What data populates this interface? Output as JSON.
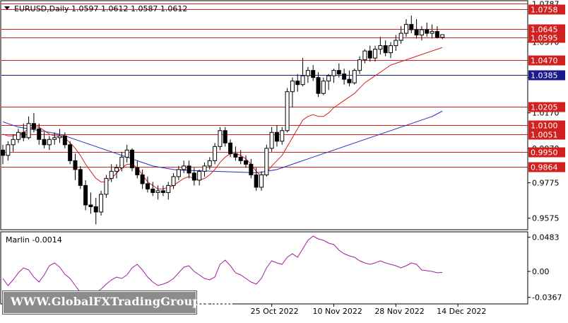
{
  "chart_data": [
    {
      "type": "candlestick",
      "title": "EURUSD,Daily  1.0597 1.0612 1.0587 1.0612",
      "header": {
        "symbol": "EURUSD,Daily",
        "open": "1.0597",
        "high": "1.0612",
        "low": "1.0587",
        "close": "1.0612"
      },
      "ylim": [
        0.951,
        1.08
      ],
      "y_ticks": [
        "0.9575",
        "0.9775",
        "0.9970",
        "1.0170",
        "1.0370",
        "1.0570"
      ],
      "x_labels": [
        {
          "label": "25 Oct 2022",
          "index": 52
        },
        {
          "label": "10 Nov 2022",
          "index": 64
        },
        {
          "label": "28 Nov 2022",
          "index": 76
        },
        {
          "label": "14 Dec 2022",
          "index": 88
        }
      ],
      "levels": [
        {
          "value": 1.0787,
          "label": "1.0787",
          "color": "#d02020",
          "tag": false
        },
        {
          "value": 1.0758,
          "label": "1.0758",
          "color": "#d02020",
          "tag": true
        },
        {
          "value": 1.0645,
          "label": "1.0645",
          "color": "#d02020",
          "tag": true
        },
        {
          "value": 1.0595,
          "label": "1.0595",
          "color": "#d02020",
          "tag": true
        },
        {
          "value": 1.047,
          "label": "1.0470",
          "color": "#d02020",
          "tag": true
        },
        {
          "value": 1.0385,
          "label": "1.0385",
          "color": "#1a1a8c",
          "tag": true
        },
        {
          "value": 1.0205,
          "label": "1.0205",
          "color": "#d02020",
          "tag": true
        },
        {
          "value": 1.01,
          "label": "1.0100",
          "color": "#d02020",
          "tag": true
        },
        {
          "value": 1.0051,
          "label": "1.0051",
          "color": "#d02020",
          "tag": true
        },
        {
          "value": 0.995,
          "label": "0.9950",
          "color": "#d02020",
          "tag": true
        },
        {
          "value": 0.9864,
          "label": "0.9864",
          "color": "#d02020",
          "tag": true
        }
      ],
      "candles": [
        [
          0.996,
          0.999,
          0.988,
          0.993
        ],
        [
          0.993,
          1.001,
          0.99,
          0.999
        ],
        [
          0.999,
          1.005,
          0.995,
          1.002
        ],
        [
          1.002,
          1.008,
          1.0,
          1.006
        ],
        [
          1.006,
          1.011,
          1.001,
          1.003
        ],
        [
          1.003,
          1.015,
          1.002,
          1.011
        ],
        [
          1.011,
          1.017,
          1.006,
          1.008
        ],
        [
          1.008,
          1.011,
          0.999,
          1.002
        ],
        [
          1.002,
          1.006,
          0.997,
          0.999
        ],
        [
          0.999,
          1.004,
          0.996,
          1.002
        ],
        [
          1.002,
          1.006,
          0.999,
          1.003
        ],
        [
          1.003,
          1.008,
          1.0,
          1.004
        ],
        [
          1.004,
          1.006,
          0.997,
          0.999
        ],
        [
          0.999,
          1.001,
          0.988,
          0.99
        ],
        [
          0.99,
          0.994,
          0.979,
          0.985
        ],
        [
          0.985,
          0.987,
          0.974,
          0.976
        ],
        [
          0.976,
          0.979,
          0.962,
          0.965
        ],
        [
          0.965,
          0.972,
          0.96,
          0.964
        ],
        [
          0.964,
          0.969,
          0.954,
          0.961
        ],
        [
          0.961,
          0.973,
          0.959,
          0.971
        ],
        [
          0.971,
          0.982,
          0.969,
          0.98
        ],
        [
          0.98,
          0.988,
          0.978,
          0.984
        ],
        [
          0.984,
          0.988,
          0.98,
          0.986
        ],
        [
          0.986,
          0.995,
          0.984,
          0.992
        ],
        [
          0.992,
          0.999,
          0.989,
          0.996
        ],
        [
          0.996,
          0.997,
          0.984,
          0.986
        ],
        [
          0.986,
          0.99,
          0.98,
          0.982
        ],
        [
          0.982,
          0.985,
          0.974,
          0.977
        ],
        [
          0.977,
          0.981,
          0.972,
          0.974
        ],
        [
          0.974,
          0.978,
          0.97,
          0.972
        ],
        [
          0.972,
          0.976,
          0.968,
          0.973
        ],
        [
          0.973,
          0.976,
          0.97,
          0.972
        ],
        [
          0.972,
          0.978,
          0.968,
          0.976
        ],
        [
          0.976,
          0.983,
          0.974,
          0.981
        ],
        [
          0.981,
          0.987,
          0.979,
          0.985
        ],
        [
          0.985,
          0.99,
          0.983,
          0.987
        ],
        [
          0.987,
          0.99,
          0.98,
          0.983
        ],
        [
          0.983,
          0.986,
          0.976,
          0.979
        ],
        [
          0.979,
          0.985,
          0.976,
          0.984
        ],
        [
          0.984,
          0.989,
          0.981,
          0.987
        ],
        [
          0.987,
          0.992,
          0.985,
          0.99
        ],
        [
          0.99,
          1.0,
          0.988,
          0.998
        ],
        [
          0.998,
          1.009,
          0.996,
          1.007
        ],
        [
          1.007,
          1.009,
          0.998,
          1.0
        ],
        [
          1.0,
          1.002,
          0.992,
          0.994
        ],
        [
          0.994,
          0.998,
          0.99,
          0.992
        ],
        [
          0.992,
          0.996,
          0.988,
          0.99
        ],
        [
          0.99,
          0.993,
          0.986,
          0.988
        ],
        [
          0.988,
          0.991,
          0.98,
          0.982
        ],
        [
          0.982,
          0.986,
          0.973,
          0.975
        ],
        [
          0.975,
          0.984,
          0.973,
          0.982
        ],
        [
          0.982,
          0.999,
          0.981,
          0.997
        ],
        [
          0.997,
          1.009,
          0.995,
          1.006
        ],
        [
          1.006,
          1.01,
          0.998,
          1.001
        ],
        [
          1.001,
          1.009,
          0.999,
          1.007
        ],
        [
          1.007,
          1.031,
          1.006,
          1.029
        ],
        [
          1.029,
          1.037,
          1.02,
          1.035
        ],
        [
          1.035,
          1.039,
          1.029,
          1.033
        ],
        [
          1.033,
          1.048,
          1.032,
          1.038
        ],
        [
          1.038,
          1.043,
          1.034,
          1.041
        ],
        [
          1.041,
          1.044,
          1.035,
          1.037
        ],
        [
          1.037,
          1.04,
          1.026,
          1.028
        ],
        [
          1.028,
          1.037,
          1.027,
          1.035
        ],
        [
          1.035,
          1.039,
          1.03,
          1.038
        ],
        [
          1.038,
          1.042,
          1.034,
          1.041
        ],
        [
          1.041,
          1.045,
          1.037,
          1.039
        ],
        [
          1.039,
          1.042,
          1.033,
          1.036
        ],
        [
          1.036,
          1.041,
          1.032,
          1.034
        ],
        [
          1.034,
          1.042,
          1.033,
          1.041
        ],
        [
          1.041,
          1.049,
          1.039,
          1.047
        ],
        [
          1.047,
          1.053,
          1.045,
          1.052
        ],
        [
          1.052,
          1.055,
          1.046,
          1.048
        ],
        [
          1.048,
          1.055,
          1.046,
          1.053
        ],
        [
          1.053,
          1.06,
          1.05,
          1.055
        ],
        [
          1.055,
          1.058,
          1.049,
          1.051
        ],
        [
          1.051,
          1.057,
          1.048,
          1.055
        ],
        [
          1.055,
          1.061,
          1.052,
          1.058
        ],
        [
          1.058,
          1.066,
          1.056,
          1.062
        ],
        [
          1.062,
          1.07,
          1.06,
          1.067
        ],
        [
          1.067,
          1.072,
          1.062,
          1.064
        ],
        [
          1.064,
          1.07,
          1.059,
          1.061
        ],
        [
          1.061,
          1.066,
          1.058,
          1.064
        ],
        [
          1.064,
          1.068,
          1.06,
          1.062
        ],
        [
          1.062,
          1.067,
          1.059,
          1.063
        ],
        [
          1.063,
          1.066,
          1.059,
          1.0597
        ],
        [
          1.0597,
          1.0612,
          1.0587,
          1.0612
        ]
      ],
      "ma_red": [
        1.005,
        1.004,
        1.004,
        1.005,
        1.006,
        1.008,
        1.009,
        1.009,
        1.007,
        1.005,
        1.004,
        1.004,
        1.003,
        1.0,
        0.997,
        0.993,
        0.988,
        0.984,
        0.98,
        0.978,
        0.978,
        0.98,
        0.983,
        0.986,
        0.988,
        0.988,
        0.986,
        0.982,
        0.978,
        0.976,
        0.974,
        0.974,
        0.975,
        0.976,
        0.978,
        0.98,
        0.981,
        0.98,
        0.979,
        0.98,
        0.982,
        0.985,
        0.989,
        0.992,
        0.994,
        0.994,
        0.993,
        0.991,
        0.988,
        0.984,
        0.981,
        0.983,
        0.987,
        0.99,
        0.993,
        0.998,
        1.003,
        1.008,
        1.013,
        1.015,
        1.016,
        1.015,
        1.015,
        1.017,
        1.02,
        1.022,
        1.024,
        1.026,
        1.028,
        1.031,
        1.034,
        1.036,
        1.038,
        1.04,
        1.042,
        1.044,
        1.045,
        1.046,
        1.047,
        1.048,
        1.049,
        1.05,
        1.051,
        1.052,
        1.053,
        1.054
      ],
      "ma_blue": [
        1.012,
        1.011,
        1.01,
        1.009,
        1.0085,
        1.008,
        1.0075,
        1.007,
        1.0065,
        1.006,
        1.0055,
        1.005,
        1.004,
        1.003,
        1.002,
        1.001,
        1.0,
        0.999,
        0.998,
        0.997,
        0.996,
        0.995,
        0.994,
        0.993,
        0.992,
        0.991,
        0.99,
        0.989,
        0.988,
        0.987,
        0.9865,
        0.986,
        0.9855,
        0.985,
        0.9848,
        0.9846,
        0.9845,
        0.9844,
        0.9843,
        0.9842,
        0.9841,
        0.984,
        0.9839,
        0.9838,
        0.9837,
        0.9836,
        0.9835,
        0.9834,
        0.9833,
        0.9832,
        0.9835,
        0.984,
        0.9845,
        0.985,
        0.986,
        0.987,
        0.988,
        0.989,
        0.99,
        0.991,
        0.992,
        0.993,
        0.994,
        0.995,
        0.996,
        0.997,
        0.998,
        0.999,
        1.0,
        1.001,
        1.002,
        1.003,
        1.004,
        1.005,
        1.006,
        1.007,
        1.008,
        1.009,
        1.01,
        1.011,
        1.012,
        1.013,
        1.014,
        1.015,
        1.0165,
        1.018
      ]
    },
    {
      "type": "line",
      "title": "Marlin -0.0014",
      "ylim": [
        -0.045,
        0.055
      ],
      "y_ticks": [
        "0.0483",
        "0.00",
        "-0.0367"
      ],
      "series": [
        {
          "values": [
            -0.01,
            -0.02,
            -0.012,
            -0.002,
            0.005,
            0.002,
            -0.008,
            -0.015,
            -0.005,
            0.008,
            0.012,
            0.006,
            -0.004,
            -0.01,
            -0.02,
            -0.03,
            -0.035,
            -0.028,
            -0.03,
            -0.025,
            -0.018,
            -0.012,
            -0.008,
            -0.01,
            -0.005,
            0.005,
            0.01,
            0.002,
            -0.008,
            -0.015,
            -0.02,
            -0.018,
            -0.015,
            -0.01,
            -0.002,
            0.006,
            0.008,
            0.0,
            -0.005,
            -0.01,
            -0.012,
            -0.008,
            0.01,
            0.016,
            0.008,
            -0.002,
            -0.005,
            -0.01,
            -0.015,
            -0.018,
            -0.01,
            0.005,
            0.015,
            0.012,
            0.01,
            0.02,
            0.025,
            0.02,
            0.032,
            0.044,
            0.05,
            0.046,
            0.044,
            0.04,
            0.038,
            0.03,
            0.025,
            0.022,
            0.02,
            0.015,
            0.012,
            0.01,
            0.012,
            0.015,
            0.012,
            0.01,
            0.008,
            0.005,
            0.008,
            0.012,
            0.01,
            0.002,
            0.001,
            0.0,
            -0.002,
            -0.0014
          ]
        }
      ]
    }
  ],
  "watermark": "WWW.GlobalFXTradingGroup.Com",
  "colors": {
    "bull": "#ffffff",
    "bear": "#000000",
    "level_red": "#d02020",
    "level_blue": "#1a1a8c",
    "ma_red": "#d02020",
    "ma_blue": "#1f2fbf",
    "marlin": "#a020a0"
  }
}
